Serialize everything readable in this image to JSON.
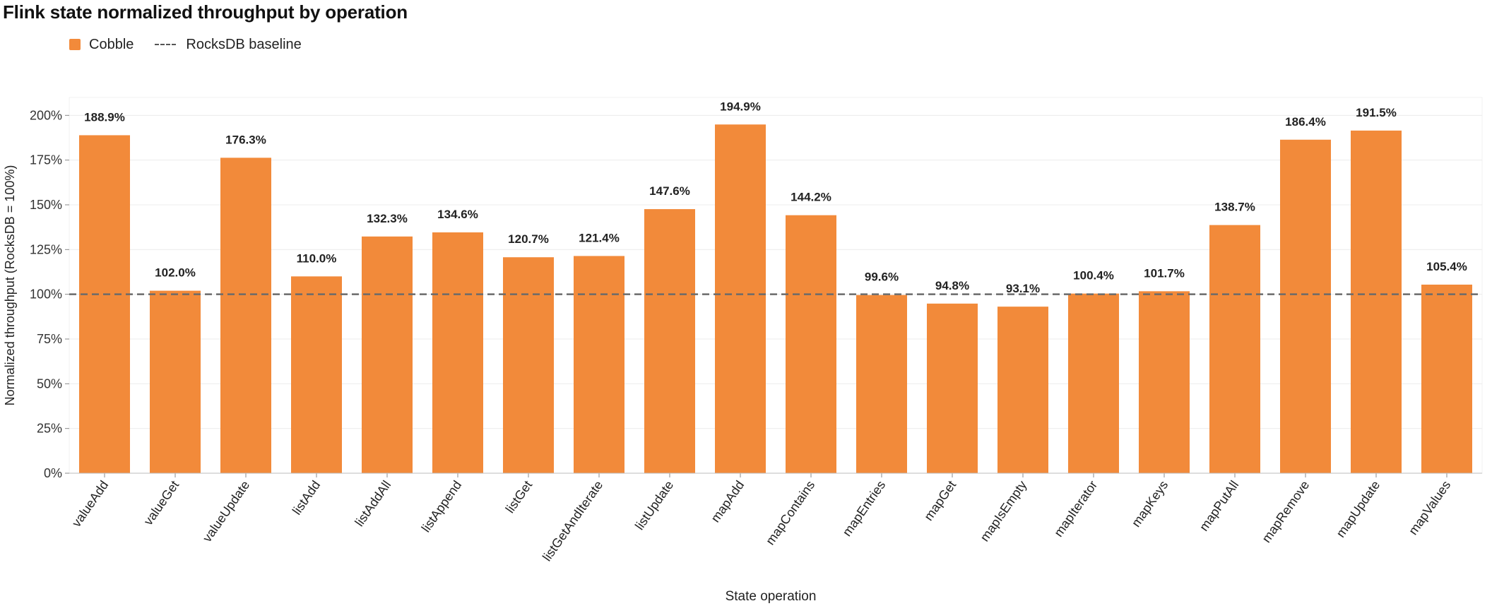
{
  "title": "Flink state normalized throughput by operation",
  "legend": {
    "series_label": "Cobble",
    "baseline_label": "RocksDB baseline"
  },
  "colors": {
    "bar": "#F28A3A",
    "baseline": "#6b6b6b",
    "grid": "#ececec"
  },
  "chart_data": {
    "type": "bar",
    "title": "Flink state normalized throughput by operation",
    "xlabel": "State operation",
    "ylabel": "Normalized throughput (RocksDB = 100%)",
    "ylim": [
      0,
      210
    ],
    "yticks": [
      "0%",
      "25%",
      "50%",
      "75%",
      "100%",
      "125%",
      "150%",
      "175%",
      "200%"
    ],
    "ytick_values": [
      0,
      25,
      50,
      75,
      100,
      125,
      150,
      175,
      200
    ],
    "baseline": {
      "name": "RocksDB baseline",
      "value": 100
    },
    "grid": true,
    "legend_position": "top-left",
    "categories": [
      "valueAdd",
      "valueGet",
      "valueUpdate",
      "listAdd",
      "listAddAll",
      "listAppend",
      "listGet",
      "listGetAndIterate",
      "listUpdate",
      "mapAdd",
      "mapContains",
      "mapEntries",
      "mapGet",
      "mapIsEmpty",
      "mapIterator",
      "mapKeys",
      "mapPutAll",
      "mapRemove",
      "mapUpdate",
      "mapValues"
    ],
    "series": [
      {
        "name": "Cobble",
        "values": [
          188.9,
          102.0,
          176.3,
          110.0,
          132.3,
          134.6,
          120.7,
          121.4,
          147.6,
          194.9,
          144.2,
          99.6,
          94.8,
          93.1,
          100.4,
          101.7,
          138.7,
          186.4,
          191.5,
          105.4
        ],
        "labels": [
          "188.9%",
          "102.0%",
          "176.3%",
          "110.0%",
          "132.3%",
          "134.6%",
          "120.7%",
          "121.4%",
          "147.6%",
          "194.9%",
          "144.2%",
          "99.6%",
          "94.8%",
          "93.1%",
          "100.4%",
          "101.7%",
          "138.7%",
          "186.4%",
          "191.5%",
          "105.4%"
        ]
      }
    ]
  }
}
